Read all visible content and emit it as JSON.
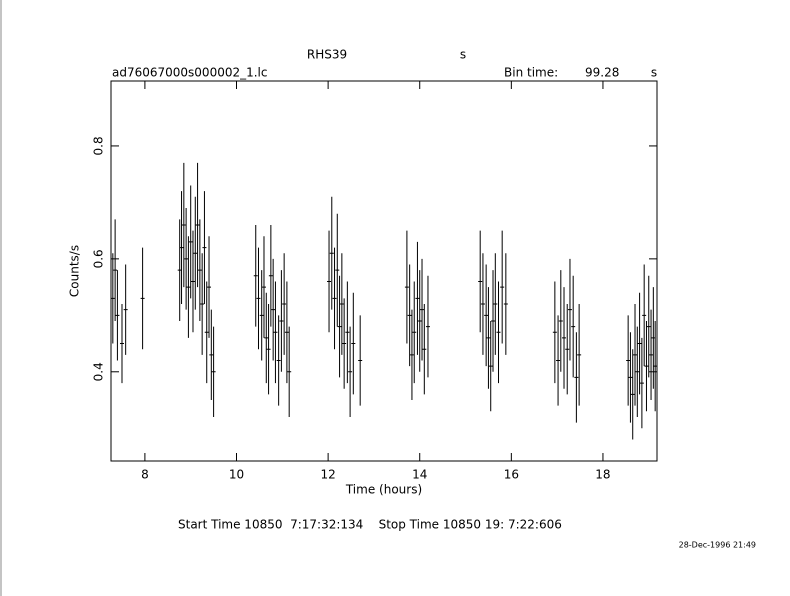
{
  "chart_data": {
    "type": "errorbar",
    "title": "RHS39",
    "title_unit": "s",
    "subtitle": "ad76067000s000002_1.lc",
    "bin_time_label": "Bin time:",
    "bin_time": "99.28",
    "bin_time_unit": "s",
    "x_label": "Time (hours)",
    "y_label": "Counts/s",
    "footer": "Start Time 10850  7:17:32:134    Stop Time 10850 19: 7:22:606",
    "date_stamp": "28-Dec-1996 21:49",
    "color": "#000000",
    "xlim": [
      7.26,
      19.18
    ],
    "ylim": [
      0.242,
      0.915
    ],
    "xticks": [
      8,
      10,
      12,
      14,
      16,
      18
    ],
    "yticks": [
      0.4,
      0.6,
      0.8
    ],
    "x": [
      7.3,
      7.35,
      7.4,
      7.5,
      7.58,
      7.95,
      8.76,
      8.8,
      8.85,
      8.9,
      8.95,
      9.0,
      9.05,
      9.1,
      9.15,
      9.2,
      9.25,
      9.3,
      9.35,
      9.4,
      9.45,
      9.5,
      10.42,
      10.48,
      10.55,
      10.6,
      10.65,
      10.7,
      10.75,
      10.8,
      10.85,
      10.92,
      10.98,
      11.04,
      11.1,
      11.15,
      12.02,
      12.08,
      12.14,
      12.2,
      12.25,
      12.3,
      12.35,
      12.42,
      12.48,
      12.55,
      12.7,
      13.72,
      13.78,
      13.83,
      13.88,
      13.95,
      14.0,
      14.05,
      14.1,
      14.18,
      15.32,
      15.38,
      15.45,
      15.5,
      15.55,
      15.6,
      15.65,
      15.72,
      15.8,
      15.88,
      16.95,
      17.02,
      17.08,
      17.15,
      17.22,
      17.28,
      17.35,
      17.42,
      17.48,
      18.55,
      18.6,
      18.65,
      18.7,
      18.75,
      18.8,
      18.85,
      18.9,
      18.95,
      19.0,
      19.05,
      19.1,
      19.14
    ],
    "values": [
      0.53,
      0.58,
      0.5,
      0.45,
      0.51,
      0.53,
      0.58,
      0.62,
      0.66,
      0.6,
      0.55,
      0.63,
      0.56,
      0.61,
      0.66,
      0.58,
      0.52,
      0.62,
      0.47,
      0.55,
      0.43,
      0.4,
      0.57,
      0.53,
      0.5,
      0.55,
      0.46,
      0.44,
      0.57,
      0.51,
      0.47,
      0.42,
      0.49,
      0.52,
      0.47,
      0.4,
      0.56,
      0.61,
      0.53,
      0.58,
      0.48,
      0.52,
      0.45,
      0.47,
      0.4,
      0.45,
      0.42,
      0.55,
      0.5,
      0.43,
      0.47,
      0.53,
      0.49,
      0.51,
      0.44,
      0.48,
      0.56,
      0.52,
      0.5,
      0.46,
      0.41,
      0.49,
      0.52,
      0.47,
      0.55,
      0.52,
      0.47,
      0.42,
      0.49,
      0.46,
      0.44,
      0.51,
      0.48,
      0.39,
      0.43,
      0.42,
      0.39,
      0.36,
      0.43,
      0.4,
      0.45,
      0.38,
      0.5,
      0.41,
      0.48,
      0.43,
      0.46,
      0.41
    ],
    "errors": [
      0.08,
      0.09,
      0.08,
      0.07,
      0.08,
      0.09,
      0.09,
      0.1,
      0.11,
      0.09,
      0.09,
      0.1,
      0.09,
      0.1,
      0.11,
      0.09,
      0.09,
      0.1,
      0.09,
      0.09,
      0.08,
      0.08,
      0.09,
      0.09,
      0.08,
      0.09,
      0.08,
      0.08,
      0.09,
      0.09,
      0.09,
      0.08,
      0.09,
      0.09,
      0.09,
      0.08,
      0.09,
      0.1,
      0.09,
      0.1,
      0.09,
      0.09,
      0.08,
      0.09,
      0.08,
      0.09,
      0.08,
      0.1,
      0.09,
      0.08,
      0.09,
      0.1,
      0.09,
      0.09,
      0.08,
      0.09,
      0.09,
      0.09,
      0.09,
      0.09,
      0.08,
      0.09,
      0.09,
      0.09,
      0.1,
      0.09,
      0.09,
      0.08,
      0.09,
      0.09,
      0.08,
      0.09,
      0.09,
      0.08,
      0.09,
      0.08,
      0.08,
      0.08,
      0.09,
      0.08,
      0.09,
      0.08,
      0.09,
      0.08,
      0.09,
      0.08,
      0.09,
      0.08
    ]
  }
}
